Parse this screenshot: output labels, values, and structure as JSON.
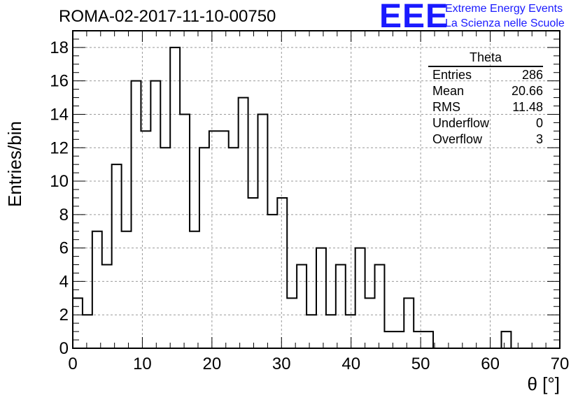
{
  "header": {
    "run_title": "ROMA-02-2017-11-10-00750",
    "logo_text": "EEE",
    "logo_line1": "Extreme Energy Events",
    "logo_line2": "La Scienza nelle Scuole"
  },
  "stats": {
    "title": "Theta",
    "rows": [
      {
        "label": "Entries",
        "value": "286"
      },
      {
        "label": "Mean",
        "value": "20.66"
      },
      {
        "label": "RMS",
        "value": "11.48"
      },
      {
        "label": "Underflow",
        "value": "0"
      },
      {
        "label": "Overflow",
        "value": "3"
      }
    ]
  },
  "colors": {
    "accent": "#1a1aff",
    "line": "#000000",
    "grid": "#999999"
  },
  "chart_data": {
    "type": "histogram",
    "xlabel": "θ [°]",
    "ylabel": "Entries/bin",
    "xlim": [
      0,
      70
    ],
    "ylim": [
      0,
      19
    ],
    "bin_width": 1.4,
    "x_ticks": [
      0,
      10,
      20,
      30,
      40,
      50,
      60,
      70
    ],
    "y_ticks": [
      0,
      2,
      4,
      6,
      8,
      10,
      12,
      14,
      16,
      18
    ],
    "grid": true,
    "values": [
      3,
      2,
      7,
      5,
      11,
      7,
      16,
      13,
      16,
      12,
      18,
      14,
      7,
      12,
      13,
      13,
      12,
      15,
      9,
      14,
      8,
      9,
      3,
      5,
      2,
      6,
      2,
      5,
      2,
      6,
      3,
      5,
      1,
      1,
      3,
      1,
      1,
      0,
      0,
      0,
      0,
      0,
      0,
      0,
      1,
      0,
      0,
      0,
      0,
      0
    ]
  }
}
